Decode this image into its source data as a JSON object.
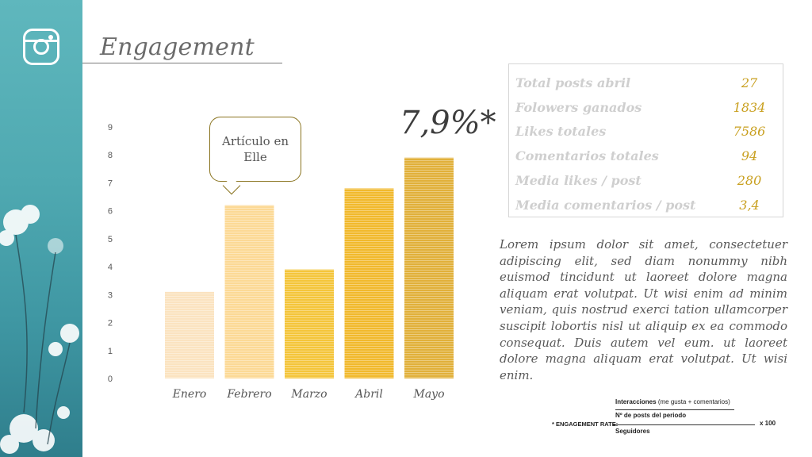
{
  "slide": {
    "title": "Engagement"
  },
  "icons": {
    "logo": "instagram-icon"
  },
  "colors": {
    "accent_gold": "#c9a020",
    "teal": "#4fa9b1"
  },
  "chart_data": {
    "type": "bar",
    "categories": [
      "Enero",
      "Febrero",
      "Marzo",
      "Abril",
      "Mayo"
    ],
    "values": [
      3.1,
      6.2,
      3.9,
      6.8,
      7.9
    ],
    "bar_colors": [
      "#fbe3c0",
      "#fcd995",
      "#f4c53a",
      "#f1b92c",
      "#e1b03a"
    ],
    "yticks": [
      0,
      1,
      2,
      3,
      4,
      5,
      6,
      7,
      8,
      9
    ],
    "ylim": [
      0,
      9
    ],
    "grid": false,
    "callout": {
      "text_line1": "Artículo en",
      "text_line2": "Elle"
    },
    "highlight_value": "7,9%*"
  },
  "stats": [
    {
      "label": "Total posts abril",
      "value": "27"
    },
    {
      "label": "Folowers ganados",
      "value": "1834"
    },
    {
      "label": "Likes totales",
      "value": "7586"
    },
    {
      "label": "Comentarios totales",
      "value": "94"
    },
    {
      "label": "Media likes / post",
      "value": "280"
    },
    {
      "label": "Media comentarios / post",
      "value": "3,4"
    }
  ],
  "paragraph": "Lorem ipsum dolor sit amet, consectetuer adipiscing elit, sed diam nonummy nibh euismod tincidunt ut laoreet dolore magna aliquam erat volutpat. Ut wisi enim ad minim veniam, quis nostrud exerci tation ullamcorper suscipit lobortis nisl ut aliquip ex ea commodo consequat. Duis autem vel eum. ut laoreet dolore magna aliquam erat volutpat. Ut wisi enim.",
  "formula": {
    "label": "* ENGAGEMENT RATE:",
    "numerator_bold": "Interacciones",
    "numerator_note": "(me gusta + comentarios)",
    "numerator_divisor": "Nº de posts del periodo",
    "denominator": "Seguidores",
    "multiplier": "x 100"
  }
}
